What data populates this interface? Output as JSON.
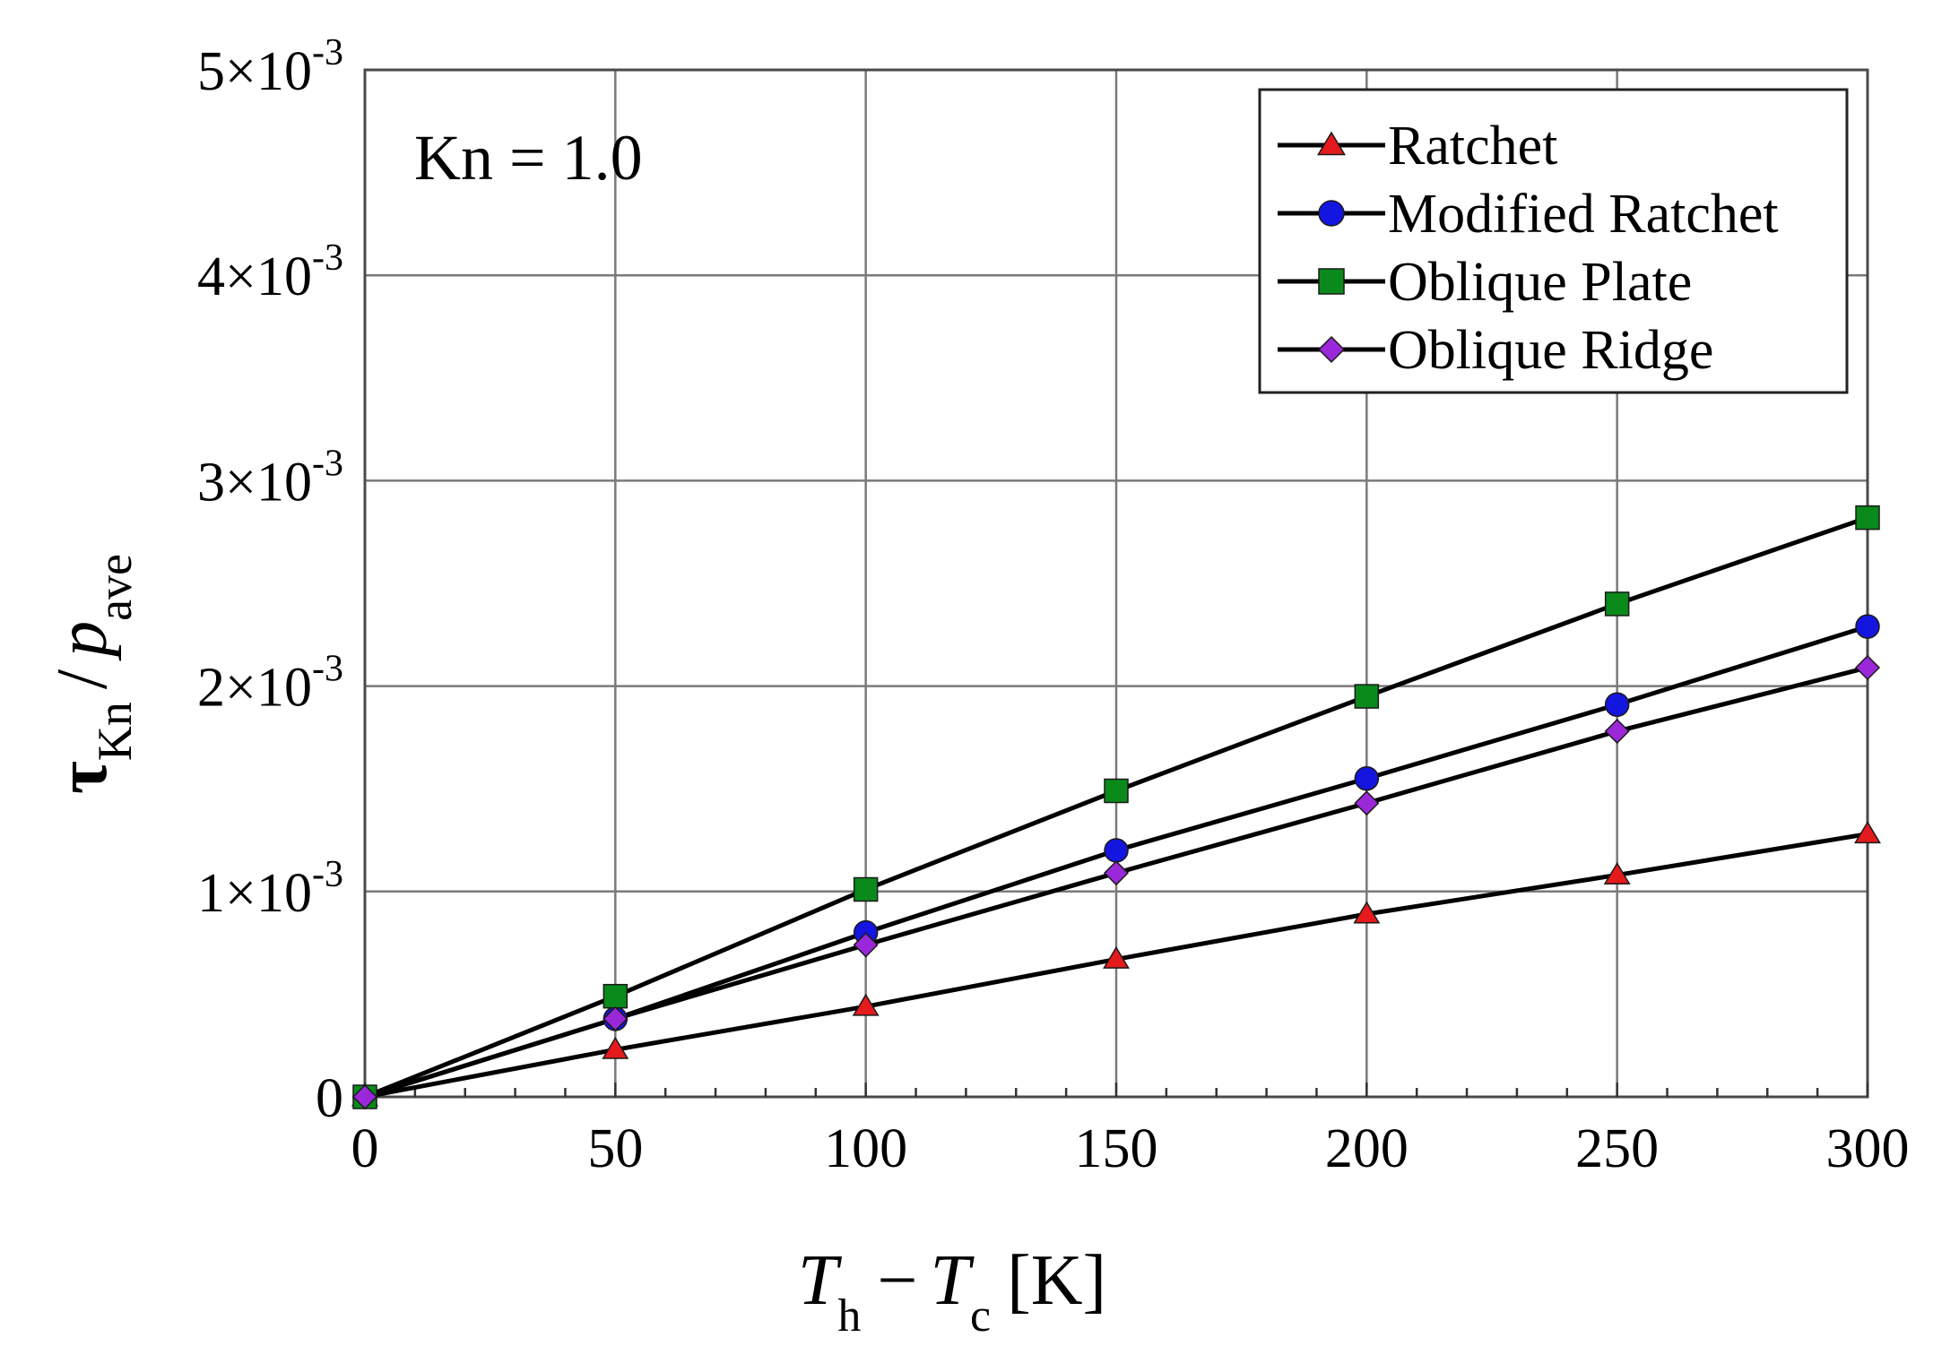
{
  "chart_data": {
    "type": "line",
    "title": "",
    "annotation": "Kn = 1.0",
    "xlabel": {
      "main1": "T",
      "sub1": "h",
      "op": "−",
      "main2": "T",
      "sub2": "c",
      "unit": "[K]"
    },
    "ylabel": {
      "tau": "τ",
      "tau_sub": "Kn",
      "slash": "/",
      "p": "p",
      "p_sub": "ave"
    },
    "x": [
      0,
      50,
      100,
      150,
      200,
      250,
      300
    ],
    "xlim": [
      0,
      300
    ],
    "ylim": [
      0,
      0.005
    ],
    "grid": true,
    "legend_position": "top-right",
    "x_ticks": [
      {
        "value": 0,
        "label": "0"
      },
      {
        "value": 50,
        "label": "50"
      },
      {
        "value": 100,
        "label": "100"
      },
      {
        "value": 150,
        "label": "150"
      },
      {
        "value": 200,
        "label": "200"
      },
      {
        "value": 250,
        "label": "250"
      },
      {
        "value": 300,
        "label": "300"
      }
    ],
    "y_ticks": [
      {
        "value": 0,
        "mant": "0",
        "exp": ""
      },
      {
        "value": 0.001,
        "mant": "1×10",
        "exp": "-3"
      },
      {
        "value": 0.002,
        "mant": "2×10",
        "exp": "-3"
      },
      {
        "value": 0.003,
        "mant": "3×10",
        "exp": "-3"
      },
      {
        "value": 0.004,
        "mant": "4×10",
        "exp": "-3"
      },
      {
        "value": 0.005,
        "mant": "5×10",
        "exp": "-3"
      }
    ],
    "series": [
      {
        "name": "Ratchet",
        "marker": "triangle",
        "color": "#e41a1c",
        "values": [
          0,
          0.00023,
          0.00044,
          0.00067,
          0.00089,
          0.00108,
          0.00128
        ]
      },
      {
        "name": "Modified Ratchet",
        "marker": "circle",
        "color": "#1515e0",
        "values": [
          0,
          0.00038,
          0.0008,
          0.0012,
          0.00155,
          0.00191,
          0.00229
        ]
      },
      {
        "name": "Oblique Plate",
        "marker": "square",
        "color": "#0a8a1a",
        "values": [
          0,
          0.00049,
          0.00101,
          0.00149,
          0.00195,
          0.0024,
          0.00282
        ]
      },
      {
        "name": "Oblique Ridge",
        "marker": "diamond",
        "color": "#9a28d8",
        "values": [
          0,
          0.00038,
          0.00074,
          0.00109,
          0.00143,
          0.00178,
          0.00209
        ]
      }
    ]
  }
}
